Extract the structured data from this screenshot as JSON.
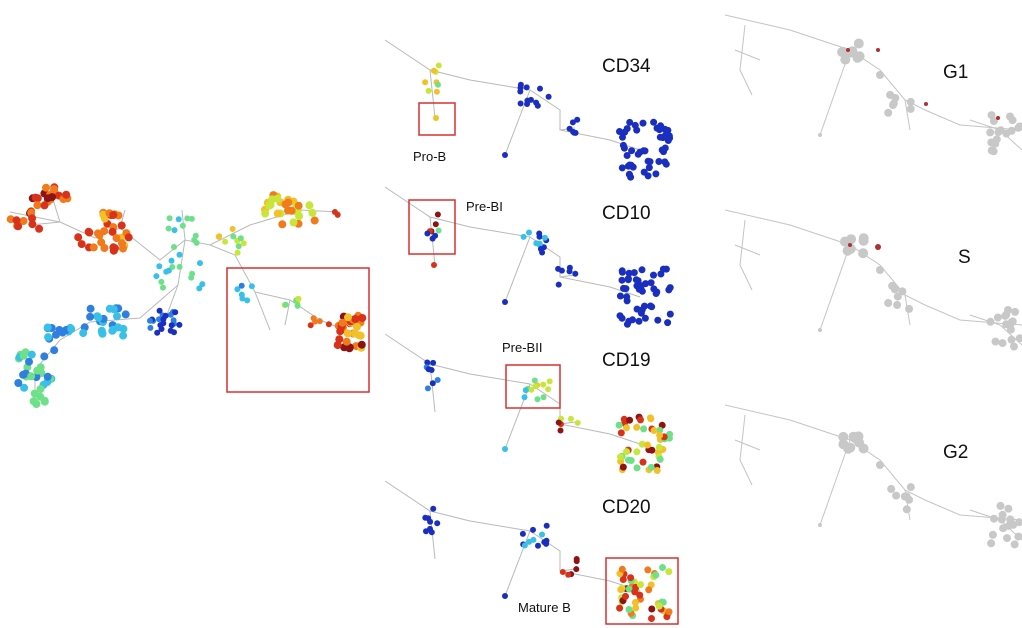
{
  "figure": {
    "marker_labels": [
      "CD34",
      "CD10",
      "CD19",
      "CD20"
    ],
    "cell_cycle_labels": [
      "G1",
      "S",
      "G2"
    ],
    "stage_labels": {
      "pro_b": "Pro-B",
      "pre_bi": "Pre-BI",
      "pre_bii": "Pre-BII",
      "mature_b": "Mature B"
    },
    "colors": {
      "highlight_box": "#d9302f",
      "edge": "#b9b9b9",
      "gray_node": "#c8c8c8",
      "cycle_mark": "#b03030",
      "scale": [
        "#1a2fbf",
        "#2f7fe0",
        "#39c0e8",
        "#6fe08a",
        "#c8e63a",
        "#f2c12a",
        "#f07a1c",
        "#d8321a",
        "#8c1414"
      ]
    }
  }
}
